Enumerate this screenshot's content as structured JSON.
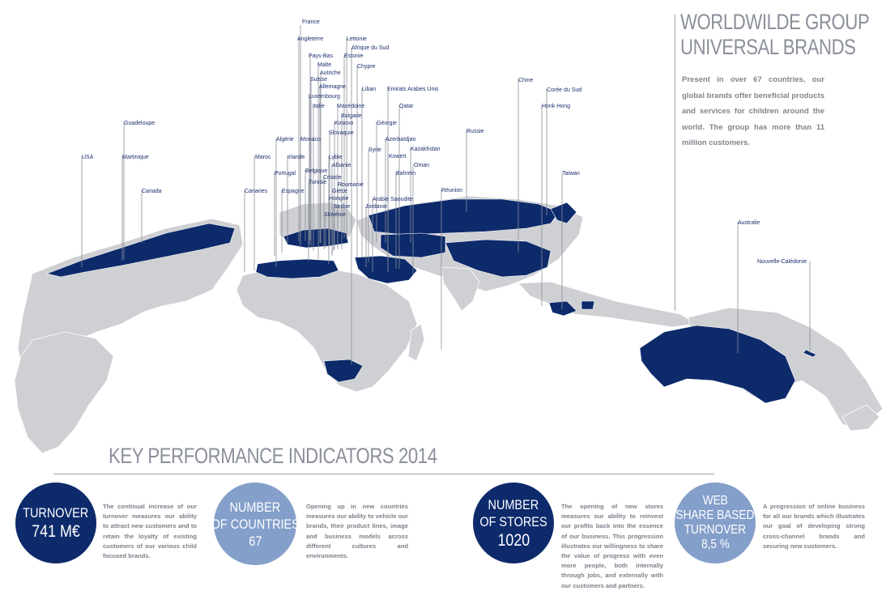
{
  "header": {
    "title_line1": "WORLDWILDE GROUP",
    "title_line2": "UNIVERSAL BRANDS",
    "description": "Present in over 67 countries, our global brands offer beneficial products and services for children around the world. The group has more than 11 million customers."
  },
  "countries": [
    "France",
    "Angleterre",
    "Lettonie",
    "Afrique du Sud",
    "Pays-Bas",
    "Estonie",
    "Malte",
    "Chypre",
    "Autriche",
    "Suisse",
    "Allemagne",
    "Liban",
    "Emirats Arabes Unis",
    "Luxembourg",
    "Italie",
    "Macédoine",
    "Qatar",
    "Bulgarie",
    "Kosovo",
    "Géorgie",
    "Guadeloupe",
    "Slovaquie",
    "Algérie",
    "Monaco",
    "Russie",
    "Azerbaïdjan",
    "Syrie",
    "Kazakhstan",
    "USA",
    "Martinique",
    "Maroc",
    "Irlande",
    "Lybie",
    "Koweït",
    "Albanie",
    "Oman",
    "Portugal",
    "Belgique",
    "Bahrein",
    "Croatie",
    "Tunisie",
    "Roumanie",
    "Canaries",
    "Espagne",
    "Grèce",
    "Réunion",
    "Canada",
    "Arabie Saoudite",
    "Hongrie",
    "Jordanie",
    "Serbie",
    "Slovénie",
    "Chine",
    "Corée du Sud",
    "Honk Hong",
    "Taiwan",
    "Australie",
    "Nouvelle-Calédonie"
  ],
  "kpi": {
    "title": "KEY PERFORMANCE INDICATORS 2014",
    "items": [
      {
        "line1": "TURNOVER",
        "line2": "741 M€",
        "line3": "",
        "line4": "",
        "text": "The continual increase of our turnover measures our ability to attract new customers and to retain the loyalty of existing customers of our various child focused brands."
      },
      {
        "line1": "NUMBER",
        "line2": "OF COUNTRIES",
        "line3": "67",
        "line4": "",
        "text": "Opening up in new countries measures our ability to vehicle our brands, their product lines, image and business models across different cultures and environments."
      },
      {
        "line1": "NUMBER",
        "line2": "OF STORES",
        "line3": "1020",
        "line4": "",
        "text": "The opening of new stores measures our ability to reinvest our profits back into the essence of our business. This progression illustrates our willingness to share the value of progress with even more people, both internally through jobs, and externally with our customers and partners."
      },
      {
        "line1": "WEB",
        "line2": "SHARE BASED",
        "line3": "TURNOVER",
        "line4": "8,5 %",
        "text": "A progression of online business for all our brands which illustrates our goal of developing strong cross-channel brands and securing new customers."
      }
    ]
  },
  "colors": {
    "highlight": "#0d2a6b",
    "land": "#cfd0d3",
    "accent_light": "#849fca",
    "text_gray": "#7b8089"
  }
}
